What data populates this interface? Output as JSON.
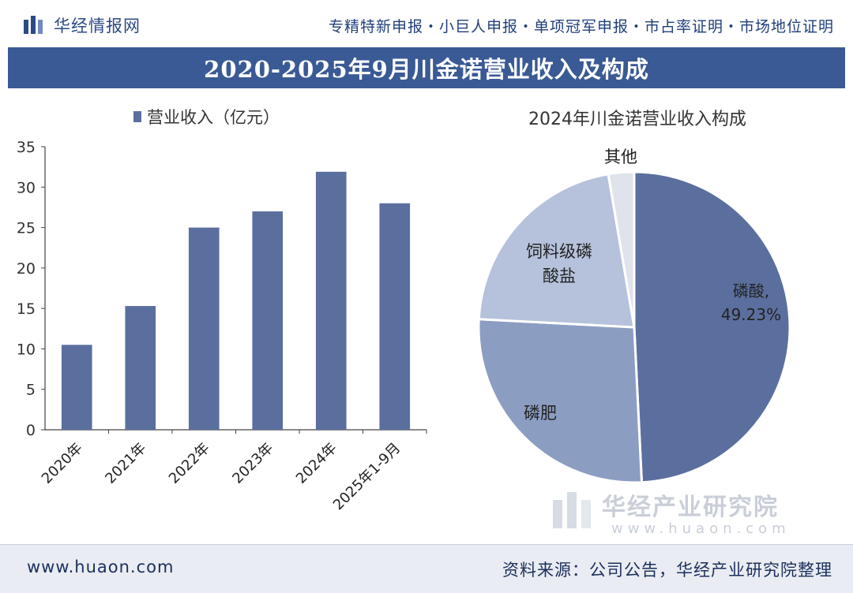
{
  "header": {
    "logo_text": "华经情报网",
    "services": "专精特新申报・小巨人申报・单项冠军申报・市占率证明・市场地位证明"
  },
  "title": "2020-2025年9月川金诺营业收入及构成",
  "chart_data": [
    {
      "type": "bar",
      "title": "",
      "legend": "营业收入（亿元）",
      "categories": [
        "2020年",
        "2021年",
        "2022年",
        "2023年",
        "2024年",
        "2025年1-9月"
      ],
      "values": [
        10.5,
        15.3,
        25.0,
        27.0,
        31.9,
        28.0
      ],
      "ylim": [
        0,
        35
      ],
      "yticks": [
        0,
        5,
        10,
        15,
        20,
        25,
        30,
        35
      ],
      "xlabel": "",
      "ylabel": ""
    },
    {
      "type": "pie",
      "title": "2024年川金诺营业收入构成",
      "slices": [
        {
          "label": "磷酸,",
          "value_label": "49.23%",
          "value": 49.23
        },
        {
          "label": "磷肥",
          "value_label": "",
          "value": 26.6
        },
        {
          "label": "饲料级磷酸盐",
          "label_lines": [
            "饲料级磷",
            "酸盐"
          ],
          "value_label": "",
          "value": 21.5
        },
        {
          "label": "其他",
          "value_label": "",
          "value": 2.67
        }
      ]
    }
  ],
  "colors": {
    "title_bar": "#3a5a95",
    "bar": "#5b6f9e",
    "slices": [
      "#5b6f9e",
      "#8c9dc2",
      "#b6c2dc",
      "#dfe3eb"
    ],
    "axis": "#444444"
  },
  "watermark": {
    "cn": "华经产业研究院",
    "en": "www.huaon.com"
  },
  "footer": {
    "url": "www.huaon.com",
    "source": "资料来源：公司公告，华经产业研究院整理"
  }
}
